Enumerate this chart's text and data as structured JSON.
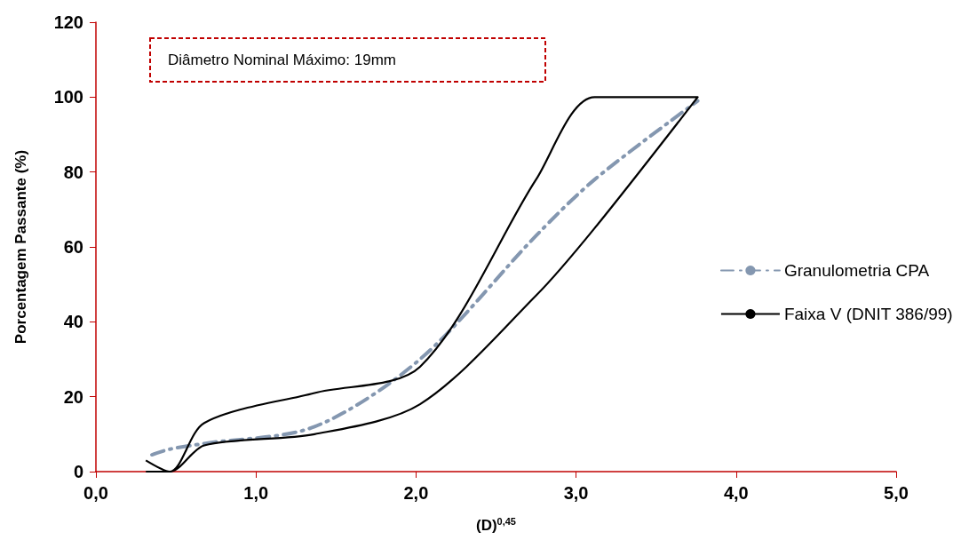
{
  "chart_data": {
    "type": "line",
    "xlabel": "(D)$^{0,45}$",
    "ylabel": "Porcentagem Passante (%)",
    "annotations": [
      "Diâmetro Nominal Máximo: 19mm"
    ],
    "xlim": [
      0,
      5
    ],
    "xticks": [
      {
        "value": 0,
        "label": "0,0"
      },
      {
        "value": 1,
        "label": "1,0"
      },
      {
        "value": 2,
        "label": "2,0"
      },
      {
        "value": 3,
        "label": "3,0"
      },
      {
        "value": 4,
        "label": "4,0"
      },
      {
        "value": 5,
        "label": "5,0"
      }
    ],
    "ylim": [
      0,
      120
    ],
    "yticks": [
      0,
      20,
      40,
      60,
      80,
      100,
      120
    ],
    "grid": false,
    "legend": "right",
    "marker": "none",
    "series": [
      {
        "name": "Granulometria CPA",
        "color": "#8497b0",
        "line_style": "dashdot",
        "x": [
          0.35,
          0.462,
          0.677,
          1.366,
          2.025,
          2.75,
          3.116,
          3.76
        ],
        "values": [
          4.5,
          6,
          7.5,
          12,
          30,
          63,
          78,
          99
        ]
      },
      {
        "name": "Faixa V (DNIT 386/99)",
        "color": "#000000",
        "line_style": "solid",
        "x": [
          0.312,
          0.462,
          0.677,
          1.366,
          2.025,
          2.75,
          3.116,
          3.76,
          3.116,
          2.75,
          2.025,
          1.366,
          0.677,
          0.462,
          0.312
        ],
        "values": [
          0,
          0,
          7,
          10,
          18,
          47,
          65,
          100,
          100,
          78,
          28,
          21,
          13,
          0,
          3
        ]
      }
    ]
  }
}
